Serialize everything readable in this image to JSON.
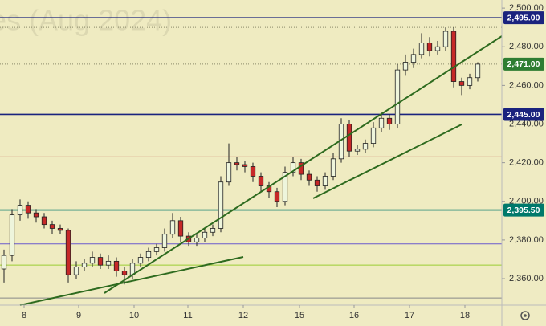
{
  "chart_data": {
    "type": "candlestick",
    "watermark": "es (Aug 2024)",
    "x": [
      0,
      1,
      2,
      3,
      4,
      5,
      6,
      7,
      8,
      9,
      10,
      11,
      12,
      13,
      14,
      15,
      16,
      17,
      18,
      19,
      20,
      21,
      22,
      23,
      24,
      25,
      26,
      27,
      28,
      29,
      30,
      31,
      32,
      33,
      34,
      35,
      36,
      37,
      38,
      39,
      40,
      41,
      42,
      43,
      44,
      45,
      46,
      47,
      48,
      49,
      50,
      51,
      52,
      53,
      54,
      55,
      56,
      57,
      58,
      59
    ],
    "open": [
      2365,
      2372,
      2393,
      2398,
      2394,
      2392,
      2388,
      2386,
      2385,
      2362,
      2366,
      2368,
      2371,
      2367,
      2369,
      2364,
      2362,
      2368,
      2371,
      2374,
      2376,
      2383,
      2390,
      2382,
      2379,
      2381,
      2384,
      2386,
      2410,
      2420,
      2419,
      2418,
      2413,
      2408,
      2405,
      2400,
      2415,
      2420,
      2414,
      2411,
      2408,
      2413,
      2422,
      2440,
      2426,
      2427,
      2430,
      2438,
      2443,
      2440,
      2468,
      2472,
      2476,
      2482,
      2478,
      2480,
      2488,
      2462,
      2460,
      2464
    ],
    "high": [
      2375,
      2396,
      2401,
      2400,
      2396,
      2394,
      2390,
      2388,
      2386,
      2369,
      2370,
      2374,
      2373,
      2372,
      2371,
      2366,
      2370,
      2373,
      2376,
      2378,
      2386,
      2394,
      2392,
      2384,
      2383,
      2386,
      2388,
      2413,
      2430,
      2423,
      2421,
      2420,
      2415,
      2410,
      2407,
      2418,
      2423,
      2422,
      2416,
      2413,
      2415,
      2425,
      2443,
      2442,
      2429,
      2432,
      2441,
      2446,
      2445,
      2471,
      2476,
      2479,
      2487,
      2485,
      2483,
      2490,
      2490,
      2464,
      2466,
      2472
    ],
    "low": [
      2358,
      2369,
      2390,
      2391,
      2389,
      2386,
      2383,
      2383,
      2358,
      2360,
      2364,
      2366,
      2365,
      2365,
      2361,
      2357,
      2360,
      2366,
      2369,
      2372,
      2374,
      2381,
      2379,
      2377,
      2377,
      2379,
      2382,
      2384,
      2408,
      2416,
      2415,
      2410,
      2405,
      2402,
      2397,
      2398,
      2413,
      2411,
      2408,
      2405,
      2406,
      2411,
      2420,
      2423,
      2424,
      2425,
      2428,
      2436,
      2437,
      2438,
      2465,
      2469,
      2474,
      2475,
      2476,
      2478,
      2459,
      2455,
      2458,
      2462
    ],
    "close": [
      2372,
      2393,
      2398,
      2394,
      2392,
      2388,
      2386,
      2385,
      2362,
      2366,
      2368,
      2371,
      2367,
      2369,
      2364,
      2362,
      2368,
      2371,
      2374,
      2376,
      2383,
      2390,
      2382,
      2379,
      2381,
      2384,
      2386,
      2410,
      2420,
      2419,
      2418,
      2413,
      2408,
      2405,
      2400,
      2415,
      2420,
      2414,
      2411,
      2408,
      2413,
      2422,
      2440,
      2426,
      2427,
      2430,
      2438,
      2443,
      2440,
      2468,
      2472,
      2476,
      2482,
      2478,
      2480,
      2488,
      2462,
      2460,
      2464,
      2471
    ],
    "up_color": "#eef5dc",
    "down_color": "#c62828",
    "xlim": [
      -0.5,
      62
    ],
    "xticks": [
      {
        "value": 2.5,
        "label": "8"
      },
      {
        "value": 9.3,
        "label": "9"
      },
      {
        "value": 16.2,
        "label": "10"
      },
      {
        "value": 22.9,
        "label": "11"
      },
      {
        "value": 29.8,
        "label": "12"
      },
      {
        "value": 36.8,
        "label": "15"
      },
      {
        "value": 43.6,
        "label": "16"
      },
      {
        "value": 50.5,
        "label": "17"
      },
      {
        "value": 57.4,
        "label": "18"
      }
    ],
    "ylim": [
      2346.3,
      2504.2
    ],
    "yticks": [
      {
        "value": 2500,
        "label": "2,500.00"
      },
      {
        "value": 2480,
        "label": "2,480.00"
      },
      {
        "value": 2460,
        "label": "2,460.00"
      },
      {
        "value": 2440,
        "label": "2,440.00"
      },
      {
        "value": 2420,
        "label": "2,420.00"
      },
      {
        "value": 2400,
        "label": "2,400.00"
      },
      {
        "value": 2380,
        "label": "2,380.00"
      },
      {
        "value": 2360,
        "label": "2,360.00"
      }
    ],
    "levels": [
      {
        "value": 2495,
        "color": "#c62828"
      },
      {
        "value": 2495,
        "color": "#1a237e",
        "label": "2,495.00"
      },
      {
        "value": 2490,
        "color": "#8a8a6a"
      },
      {
        "value": 2471,
        "color": "#8a8a6a",
        "label": "2,471.00",
        "label_color": "#2e7d32"
      },
      {
        "value": 2445,
        "color": "#1a237e",
        "label": "2,445.00"
      },
      {
        "value": 2423,
        "color": "#c0504d"
      },
      {
        "value": 2395.5,
        "color": "#00796b",
        "label": "2,395.50"
      },
      {
        "value": 2378,
        "color": "#6a5acd"
      },
      {
        "value": 2367,
        "color": "#9acd32"
      },
      {
        "value": 2350,
        "color": "#888888"
      }
    ]
  }
}
